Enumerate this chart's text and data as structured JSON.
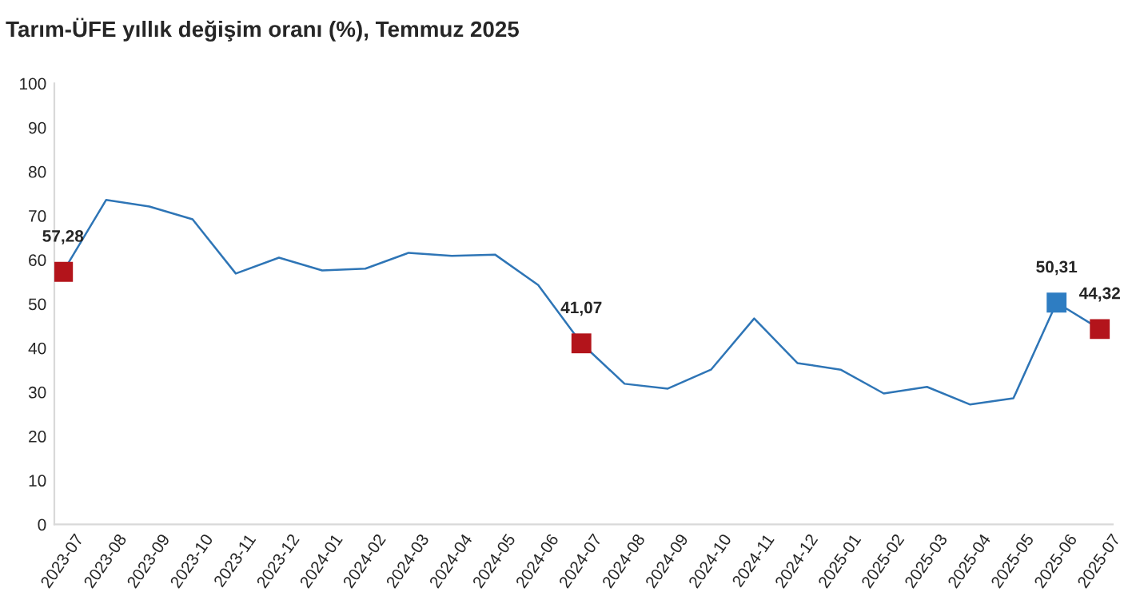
{
  "chart_data": {
    "type": "line",
    "title": "Tarım-ÜFE yıllık değişim oranı (%), Temmuz 2025",
    "categories": [
      "2023-07",
      "2023-08",
      "2023-09",
      "2023-10",
      "2023-11",
      "2023-12",
      "2024-01",
      "2024-02",
      "2024-03",
      "2024-04",
      "2024-05",
      "2024-06",
      "2024-07",
      "2024-08",
      "2024-09",
      "2024-10",
      "2024-11",
      "2024-12",
      "2025-01",
      "2025-02",
      "2025-03",
      "2025-04",
      "2025-05",
      "2025-06",
      "2025-07"
    ],
    "series": [
      {
        "color": "#2e75b6",
        "values": [
          57.28,
          73.6,
          72.1,
          69.2,
          56.9,
          60.5,
          57.6,
          58.0,
          61.6,
          60.9,
          61.2,
          54.3,
          41.07,
          31.9,
          30.8,
          35.1,
          46.7,
          36.6,
          35.1,
          29.7,
          31.2,
          27.2,
          28.6,
          50.31,
          44.32
        ],
        "colors": [
          "#b3141b",
          null,
          null,
          null,
          null,
          null,
          null,
          null,
          null,
          null,
          null,
          null,
          "#b3141b",
          null,
          null,
          null,
          null,
          null,
          null,
          null,
          null,
          null,
          null,
          "#2e7dc2",
          "#b3141b"
        ],
        "value_labels": [
          "57,28",
          null,
          null,
          null,
          null,
          null,
          null,
          null,
          null,
          null,
          null,
          null,
          "41,07",
          null,
          null,
          null,
          null,
          null,
          null,
          null,
          null,
          null,
          null,
          "50,31",
          "44,32"
        ]
      }
    ],
    "ylim": [
      0,
      100
    ],
    "yticks": [
      0,
      10,
      20,
      30,
      40,
      50,
      60,
      70,
      80,
      90,
      100
    ],
    "grid": false,
    "legend": false
  }
}
